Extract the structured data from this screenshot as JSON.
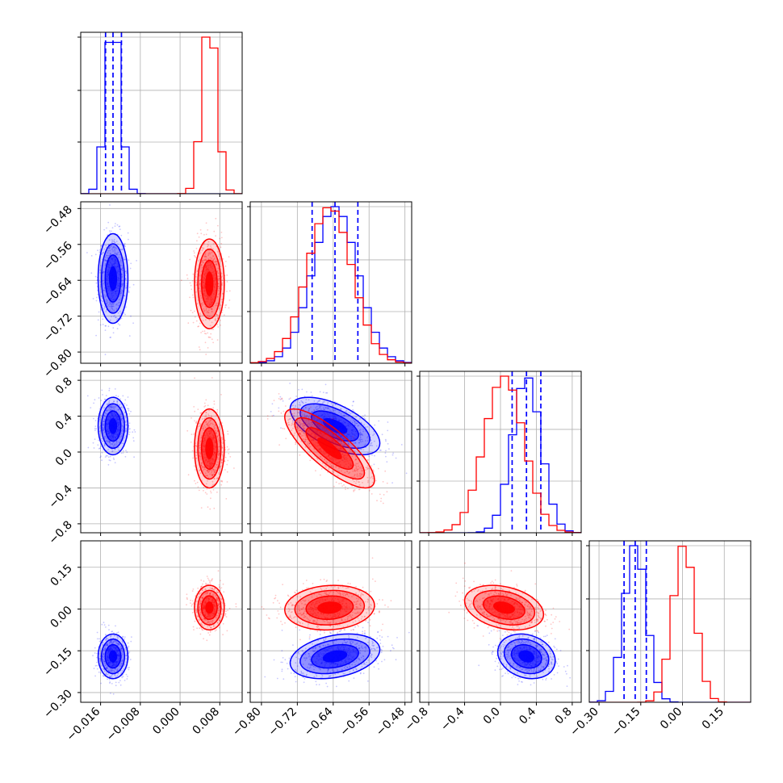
{
  "chart_data": {
    "type": "corner",
    "title": "",
    "grid": true,
    "colors": {
      "blue": "#0000ff",
      "red": "#ff0000"
    },
    "series": [
      {
        "color": "blue",
        "mean": [
          -0.0135,
          -0.636,
          0.29,
          -0.17
        ],
        "std": [
          0.0015,
          0.05,
          0.16,
          0.04
        ],
        "quantiles": [
          [
            -0.015,
            -0.0135,
            -0.0118
          ],
          [
            -0.687,
            -0.636,
            -0.585
          ],
          [
            0.13,
            0.29,
            0.45
          ],
          [
            -0.21,
            -0.17,
            -0.13
          ]
        ]
      },
      {
        "color": "red",
        "mean": [
          0.0059,
          -0.648,
          0.04,
          0.005
        ],
        "std": [
          0.0015,
          0.05,
          0.22,
          0.04
        ]
      }
    ],
    "pairwise_corr": {
      "1-2": {
        "blue": -0.6,
        "red": -0.8
      },
      "1-3": {
        "blue": 0.3,
        "red": 0.1
      },
      "2-3": {
        "blue": -0.2,
        "red": -0.3
      }
    },
    "axes": [
      {
        "range": [
          -0.02,
          0.0125
        ],
        "ticks": [
          -0.016,
          -0.008,
          0.0,
          0.008
        ],
        "tick_labels": [
          "−0.016",
          "−0.008",
          "0.000",
          "0.008"
        ]
      },
      {
        "range": [
          -0.825,
          -0.465
        ],
        "ticks": [
          -0.8,
          -0.72,
          -0.64,
          -0.56,
          -0.48
        ],
        "tick_labels": [
          "−0.80",
          "−0.72",
          "−0.64",
          "−0.56",
          "−0.48"
        ]
      },
      {
        "range": [
          -0.9,
          0.9
        ],
        "ticks": [
          -0.8,
          -0.4,
          0.0,
          0.4,
          0.8
        ],
        "tick_labels": [
          "−0.8",
          "−0.4",
          "0.0",
          "0.4",
          "0.8"
        ]
      },
      {
        "range": [
          -0.335,
          0.245
        ],
        "ticks": [
          -0.3,
          -0.15,
          0.0,
          0.15
        ],
        "tick_labels": [
          "−0.30",
          "−0.15",
          "0.00",
          "0.15"
        ]
      }
    ]
  }
}
